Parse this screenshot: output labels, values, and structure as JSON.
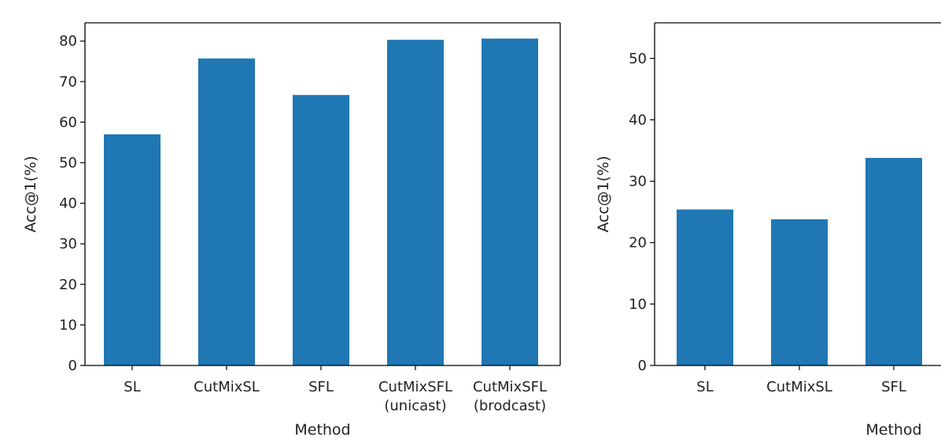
{
  "colors": {
    "bar": "#1f77b4",
    "axis": "#000000",
    "text": "#222222"
  },
  "chart_data": [
    {
      "type": "bar",
      "categories": [
        [
          "SL"
        ],
        [
          "CutMixSL"
        ],
        [
          "SFL"
        ],
        [
          "CutMixSFL",
          "(unicast)"
        ],
        [
          "CutMixSFL",
          "(brodcast)"
        ]
      ],
      "values": [
        57.0,
        75.7,
        66.7,
        80.3,
        80.6
      ],
      "xlabel": "Method",
      "ylabel": "Acc@1(%)",
      "ylim": [
        0,
        84.5
      ],
      "yticks": [
        0,
        10,
        20,
        30,
        40,
        50,
        60,
        70,
        80
      ],
      "grid": false
    },
    {
      "type": "bar",
      "categories": [
        [
          "SL"
        ],
        [
          "CutMixSL"
        ],
        [
          "SFL"
        ]
      ],
      "values": [
        25.4,
        23.8,
        33.8
      ],
      "xlabel": "Method",
      "ylabel": "Acc@1(%)",
      "ylim": [
        0,
        55.8
      ],
      "yticks": [
        0,
        10,
        20,
        30,
        40,
        50
      ],
      "grid": false
    }
  ]
}
